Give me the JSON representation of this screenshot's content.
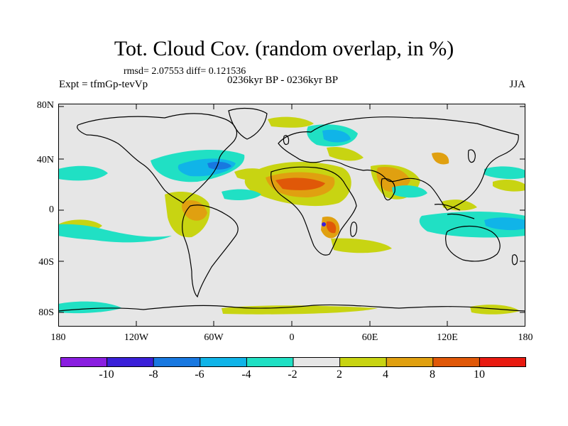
{
  "title": "Tot. Cloud Cov. (random overlap, in %)",
  "stats": "rmsd= 2.07553 diff= 0.121536",
  "expt": "Expt = tfmGp-tevVp",
  "period": "0236kyr BP - 0236kyr BP",
  "season": "JJA",
  "y_ticks": [
    "80N",
    "40N",
    "0",
    "40S",
    "80S"
  ],
  "x_ticks": [
    "180",
    "120W",
    "60W",
    "0",
    "60E",
    "120E",
    "180"
  ],
  "colorbar": {
    "labels": [
      "-10",
      "-8",
      "-6",
      "-4",
      "-2",
      "2",
      "4",
      "8",
      "10"
    ],
    "colors": [
      "#8a1ee0",
      "#3a20d8",
      "#1878e0",
      "#10b4e8",
      "#20e0c4",
      "#e6e6e6",
      "#c8d412",
      "#e0a010",
      "#e05808",
      "#e81a10"
    ]
  },
  "map_colors": {
    "background": "#e6e6e6",
    "neg_2_4": "#20e0c4",
    "neg_4_6": "#10b4e8",
    "neg_6_8": "#1878e0",
    "neg_8_10": "#3a20d8",
    "pos_2_4": "#c8d412",
    "pos_4_8": "#e0a010",
    "pos_8_10": "#e05808",
    "pos_10": "#e81a10"
  }
}
